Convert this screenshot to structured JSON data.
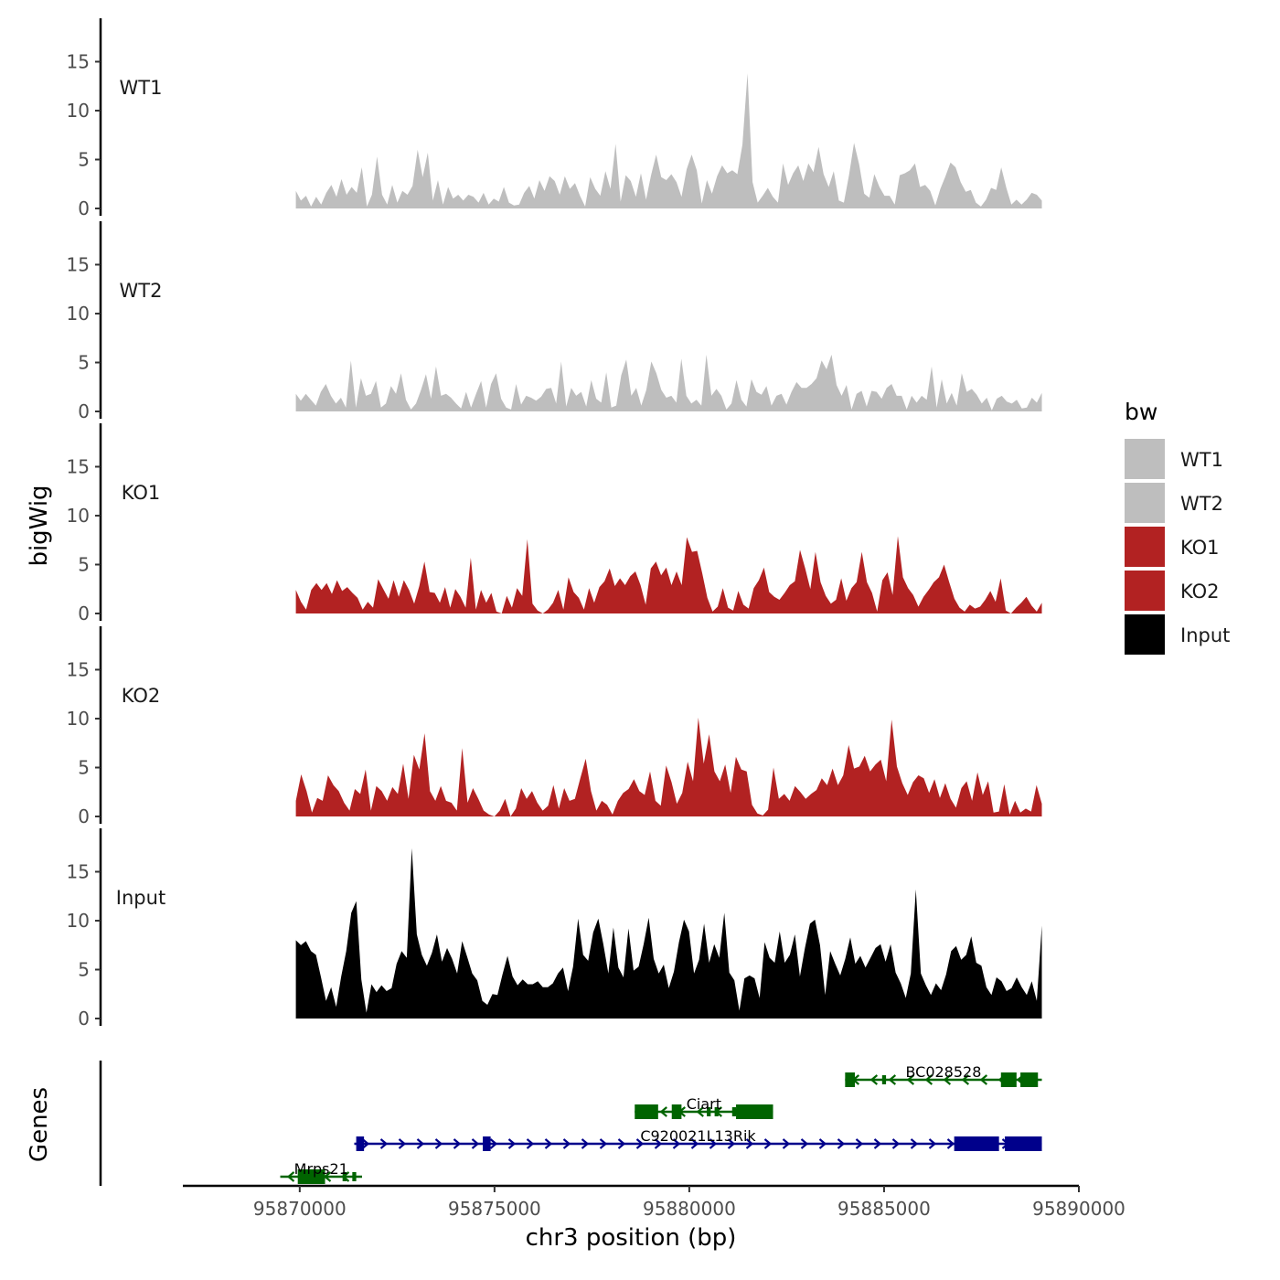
{
  "chart_data": {
    "type": "area",
    "xlabel": "chr3 position (bp)",
    "xlim": [
      95867000,
      95890000
    ],
    "x_ticks": [
      95870000,
      95875000,
      95880000,
      95885000,
      95890000
    ],
    "x_tick_labels": [
      "95870000",
      "95875000",
      "95880000",
      "95885000",
      "95890000"
    ],
    "ylabel": "bigWig",
    "ylim": [
      0,
      18.5
    ],
    "y_ticks": [
      0,
      5,
      10,
      15
    ],
    "y_tick_labels": [
      "0",
      "5",
      "10",
      "15"
    ],
    "genes_axis_label": "Genes",
    "data_range": [
      95869900,
      95889050
    ],
    "tracks": [
      {
        "name": "WT1",
        "color": "#BEBEBE",
        "values": [
          1.8,
          0.8,
          1.3,
          0.2,
          1.2,
          0.4,
          1.6,
          2.4,
          1.2,
          3,
          1.4,
          2.2,
          1.6,
          4.2,
          0.2,
          1.4,
          5.3,
          1.4,
          0.4,
          2.4,
          0.6,
          1.8,
          1.4,
          2.3,
          6,
          3.2,
          5.7,
          0.8,
          2.9,
          0.4,
          2.2,
          1,
          1.4,
          0.8,
          1.4,
          1.2,
          0.6,
          1.6,
          0.4,
          1,
          0.7,
          2.2,
          0.6,
          0.3,
          0.4,
          1.6,
          2.3,
          1,
          2.9,
          1.8,
          3.3,
          2.8,
          1.4,
          3.3,
          2,
          2.6,
          1.3,
          0.2,
          3.2,
          2,
          1.3,
          3.8,
          2,
          6.6,
          0.7,
          3.4,
          2.8,
          1.2,
          3.6,
          0.9,
          3.4,
          5.5,
          3.2,
          2.9,
          3.5,
          2.7,
          1.2,
          4,
          5.5,
          3.9,
          0.5,
          2.9,
          1.5,
          3.3,
          4.4,
          3.6,
          3.9,
          3.5,
          6.5,
          13.8,
          2.7,
          0.6,
          1.3,
          2.1,
          1.2,
          0.6,
          4.6,
          2.4,
          3.6,
          4.4,
          2.8,
          4.6,
          3.7,
          6.3,
          3.5,
          2.2,
          3.8,
          0.8,
          0.6,
          3.4,
          6.7,
          4.5,
          1.5,
          1.1,
          3.5,
          2.2,
          1.3,
          1.3,
          0.4,
          3.4,
          3.6,
          3.9,
          4.6,
          2.2,
          2.4,
          1.8,
          0.3,
          2,
          3.3,
          4.7,
          4.2,
          2.7,
          1.7,
          1.9,
          0.6,
          0.2,
          0.9,
          2.1,
          1.9,
          4.2,
          2.1,
          0.4,
          0.9,
          0.4,
          0.9,
          1.6,
          1.4,
          0.8
        ]
      },
      {
        "name": "WT2",
        "color": "#BEBEBE",
        "values": [
          1.8,
          1.1,
          1.8,
          1.2,
          0.6,
          2,
          2.8,
          1.6,
          0.8,
          1.4,
          0.4,
          5.2,
          0.4,
          3.4,
          1.6,
          1.8,
          3.1,
          0.4,
          0.8,
          2.6,
          1.8,
          3.9,
          1.2,
          0.2,
          0.8,
          2.2,
          3.8,
          1.3,
          4.6,
          1.6,
          1.8,
          1.4,
          0.8,
          0.3,
          2,
          0.4,
          1.8,
          3.1,
          0.4,
          2.8,
          3.9,
          1.3,
          0.4,
          0.2,
          2.8,
          0.7,
          1.6,
          1.4,
          1.1,
          1.5,
          2.3,
          2.4,
          0.8,
          5.1,
          0.5,
          2.4,
          1.6,
          2,
          0.5,
          3.2,
          1.3,
          0.9,
          4,
          0.4,
          0.6,
          3.7,
          5.3,
          1.6,
          2.4,
          0.6,
          2.2,
          5.1,
          3.9,
          2.2,
          1.4,
          1.6,
          0.9,
          5.4,
          1.6,
          0.8,
          1.2,
          0.6,
          5.8,
          1.6,
          2.3,
          1.6,
          0.2,
          0.8,
          3.2,
          1.2,
          0.5,
          3.3,
          2,
          1.7,
          2.6,
          0.6,
          1.6,
          1.8,
          0.7,
          2,
          3,
          2.4,
          2.4,
          2.8,
          3.4,
          5.2,
          4.3,
          5.8,
          2.7,
          1.6,
          2.7,
          0.2,
          1.8,
          2.1,
          0.5,
          2.1,
          2,
          1.3,
          2.4,
          2.8,
          1.6,
          1.6,
          0.2,
          1.6,
          0.9,
          1.6,
          1.2,
          4.6,
          0.4,
          3.3,
          0.8,
          1.9,
          0.6,
          3.9,
          2,
          2.3,
          1.7,
          0.8,
          1.4,
          0.1,
          1.3,
          1.6,
          1,
          0.8,
          1.2,
          0.3,
          0.4,
          1.4,
          0.9,
          1.9
        ]
      },
      {
        "name": "KO1",
        "color": "#B22222",
        "values": [
          2.4,
          1.2,
          0.4,
          2.4,
          3.1,
          2.4,
          3.1,
          2,
          3.4,
          2.3,
          2.7,
          2.1,
          1.6,
          0.4,
          1.2,
          0.6,
          3.5,
          2.5,
          1.5,
          3.4,
          1.7,
          3.4,
          2.4,
          1,
          2.8,
          5.3,
          2.2,
          2.1,
          1.1,
          2.7,
          0.6,
          2.5,
          1.7,
          0.6,
          5.7,
          0.4,
          2.4,
          1.1,
          2.1,
          0.2,
          0,
          1.8,
          0.6,
          2.6,
          1.8,
          7.6,
          1,
          0.3,
          0,
          0.4,
          1.1,
          2.4,
          0.4,
          3.7,
          2.2,
          1.6,
          0.4,
          2.6,
          1.1,
          2.7,
          3.3,
          4.6,
          2.8,
          3.6,
          2.9,
          3.8,
          4.3,
          2.9,
          0.9,
          4.6,
          5.3,
          3.9,
          4.7,
          2.9,
          4.3,
          2.9,
          7.8,
          6.3,
          6.4,
          4.1,
          1.6,
          0.2,
          0.7,
          2.6,
          0.6,
          0.3,
          2.3,
          0.9,
          0.5,
          2.6,
          3.4,
          4.7,
          2.2,
          1.7,
          1.4,
          2.1,
          2.9,
          3.3,
          6.5,
          4.6,
          2.5,
          6.3,
          3.2,
          1.8,
          1,
          1.4,
          3.6,
          1.3,
          2.6,
          3.2,
          6.3,
          3.2,
          2.1,
          0.2,
          3.4,
          4.2,
          1.9,
          7.9,
          3.7,
          2.6,
          1.9,
          0.7,
          1.7,
          2.4,
          3.2,
          3.7,
          5,
          3.2,
          1.5,
          0.6,
          0.2,
          0.9,
          0.5,
          0.7,
          1.4,
          2.3,
          1.2,
          3.6,
          0.3,
          0,
          0.6,
          1.1,
          1.7,
          0.8,
          0.2,
          1.1
        ]
      },
      {
        "name": "KO2",
        "color": "#B22222",
        "values": [
          1.6,
          4.3,
          2.6,
          0.4,
          1.9,
          1.6,
          4.2,
          3.2,
          2.6,
          1.4,
          0.6,
          2.8,
          2.3,
          4.8,
          0.6,
          3.1,
          2.6,
          1.6,
          3,
          2.3,
          5.4,
          1.8,
          6.3,
          4.8,
          8.5,
          2.6,
          1.6,
          3.1,
          1.6,
          1.4,
          0.6,
          7,
          1.4,
          2.9,
          1.8,
          0.6,
          0.2,
          0,
          0.6,
          1.8,
          0,
          0.8,
          2.9,
          1.8,
          2.6,
          1.4,
          0.6,
          1.1,
          3.2,
          0.8,
          2.9,
          1.6,
          1.8,
          3.9,
          5.9,
          2.6,
          0.6,
          1.6,
          1.2,
          0.2,
          1.6,
          2.4,
          2.8,
          3.8,
          2.6,
          2.2,
          4.6,
          1.6,
          1.1,
          5.2,
          3.5,
          1.3,
          2.4,
          5.6,
          3.6,
          10.1,
          5.4,
          8.4,
          4.6,
          3.6,
          5.3,
          2.4,
          6.1,
          4.8,
          4.6,
          1.2,
          0.3,
          0.1,
          0.7,
          5,
          1.8,
          2.3,
          1.6,
          3.1,
          2.5,
          1.8,
          2.3,
          2.7,
          3.9,
          3.2,
          4.9,
          3.2,
          4.2,
          7.3,
          4.9,
          5.1,
          6.2,
          4.6,
          5.3,
          5.8,
          3.6,
          9.9,
          5.1,
          3.4,
          2.2,
          3.5,
          4.2,
          3.9,
          2.4,
          3.8,
          1.9,
          3.4,
          1.8,
          0.9,
          2.9,
          3.6,
          1.6,
          4.5,
          2.2,
          3.6,
          0.4,
          0.5,
          3.3,
          0.2,
          1.6,
          0.4,
          0.8,
          0.5,
          3.2,
          1.3
        ]
      },
      {
        "name": "Input",
        "color": "#000000",
        "values": [
          8,
          7.5,
          7.9,
          6.9,
          6.5,
          4.2,
          1.8,
          3.2,
          1.2,
          4.3,
          6.9,
          10.8,
          12,
          4,
          0.6,
          3.5,
          2.7,
          3.4,
          2.8,
          3.1,
          5.6,
          6.9,
          6.2,
          17.4,
          8.6,
          6.5,
          5.4,
          6.7,
          8.6,
          5.8,
          7.2,
          6.1,
          4.6,
          7.9,
          6.3,
          4.6,
          3.9,
          1.8,
          1.4,
          2.5,
          2.4,
          4.5,
          6.4,
          4.3,
          3.4,
          4,
          3.5,
          3.5,
          3.8,
          3.2,
          3.2,
          3.6,
          4.6,
          5.2,
          2.8,
          5.3,
          10.2,
          6.5,
          5.9,
          8.8,
          10.2,
          7.6,
          4.6,
          9.3,
          5.2,
          4.2,
          9.2,
          4.9,
          5.3,
          7.6,
          10.3,
          6.1,
          4.6,
          5.5,
          3.1,
          4.8,
          7.8,
          10.1,
          8.9,
          4.6,
          6,
          9.7,
          5.7,
          7.6,
          6.2,
          10.8,
          4.7,
          3.9,
          0.8,
          4.1,
          4.4,
          4.1,
          2.1,
          7.8,
          6.2,
          5.7,
          8.9,
          5.7,
          6.5,
          8.6,
          4.3,
          7.2,
          9.7,
          10.1,
          7.5,
          2.4,
          6.9,
          5.6,
          4.4,
          6.1,
          8.3,
          5.6,
          6.4,
          5.2,
          6.2,
          7.2,
          7.6,
          5.8,
          7.6,
          4.7,
          3.6,
          2.1,
          4.6,
          13.2,
          4.6,
          3.4,
          2.4,
          3.6,
          2.9,
          4.5,
          6.9,
          7.4,
          6,
          6.5,
          8.4,
          5.7,
          5.4,
          3.2,
          2.4,
          4.2,
          3.8,
          2.8,
          3.1,
          4.2,
          3.2,
          2.4,
          3.8,
          1.8,
          9.5
        ]
      }
    ],
    "genes": [
      {
        "name": "BC028528",
        "strand": "-",
        "start": 95884000,
        "end": 95889050,
        "row": 0,
        "color": "#006400",
        "exons": [
          [
            95884000,
            95884250,
            "thick"
          ],
          [
            95884950,
            95885050,
            "thin"
          ],
          [
            95888000,
            95888400,
            "thick"
          ],
          [
            95888500,
            95888950,
            "thick"
          ]
        ]
      },
      {
        "name": "Ciart",
        "strand": "-",
        "start": 95878600,
        "end": 95882150,
        "row": 1,
        "color": "#006400",
        "exons": [
          [
            95878600,
            95879200,
            "thick"
          ],
          [
            95879550,
            95879800,
            "thick"
          ],
          [
            95880450,
            95880550,
            "thin"
          ],
          [
            95880650,
            95880750,
            "thin"
          ],
          [
            95881100,
            95881200,
            "thin"
          ],
          [
            95881200,
            95882150,
            "thick"
          ]
        ]
      },
      {
        "name": "C920021L13Rik",
        "strand": "+",
        "start": 95871400,
        "end": 95889050,
        "row": 2,
        "color": "#00008B",
        "exons": [
          [
            95871450,
            95871650,
            "thick"
          ],
          [
            95874700,
            95874900,
            "thick"
          ],
          [
            95886800,
            95887950,
            "thick"
          ],
          [
            95888100,
            95889050,
            "thick"
          ]
        ]
      },
      {
        "name": "Mrps21",
        "strand": "-",
        "start": 95869500,
        "end": 95871600,
        "row": 3,
        "color": "#006400",
        "exons": [
          [
            95869950,
            95870650,
            "thick"
          ],
          [
            95871100,
            95871200,
            "thin"
          ],
          [
            95871350,
            95871450,
            "thin"
          ]
        ]
      }
    ],
    "legend": {
      "title": "bw",
      "entries": [
        {
          "label": "WT1",
          "color": "#BEBEBE"
        },
        {
          "label": "WT2",
          "color": "#BEBEBE"
        },
        {
          "label": "KO1",
          "color": "#B22222"
        },
        {
          "label": "KO2",
          "color": "#B22222"
        },
        {
          "label": "Input",
          "color": "#000000"
        }
      ]
    }
  }
}
